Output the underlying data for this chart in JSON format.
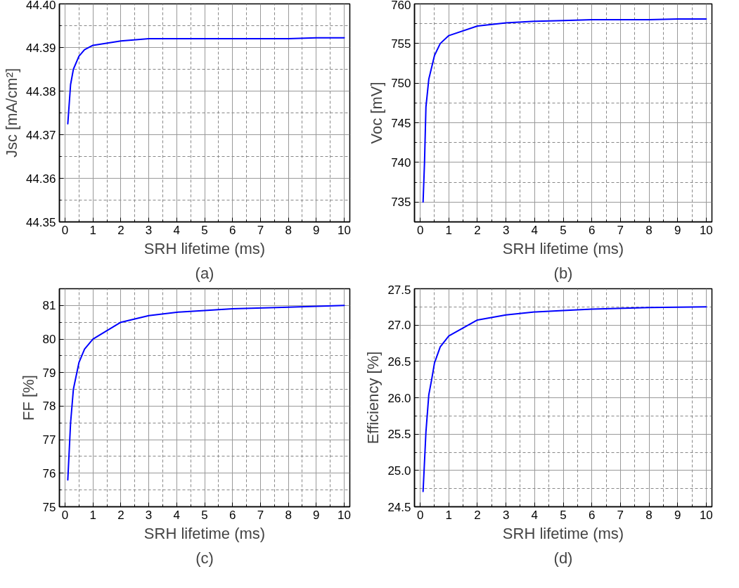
{
  "chart_data": [
    {
      "type": "line",
      "xlabel": "SRH lifetime (ms)",
      "ylabel": "Jsc [mA/cm²]",
      "annotations": [
        "(a)"
      ],
      "grid": true,
      "x": [
        0.1,
        0.2,
        0.3,
        0.5,
        0.7,
        1,
        2,
        3,
        4,
        5,
        6,
        7,
        8,
        9,
        10
      ],
      "series": [
        {
          "color": "#0000ff",
          "values": [
            44.3725,
            44.3815,
            44.385,
            44.388,
            44.3895,
            44.3905,
            44.3915,
            44.392,
            44.392,
            44.392,
            44.392,
            44.392,
            44.392,
            44.3922,
            44.3922
          ]
        }
      ],
      "xlim": [
        -0.2,
        10.2
      ],
      "ylim": [
        44.35,
        44.4
      ],
      "xticks": [
        0,
        1,
        2,
        3,
        4,
        5,
        6,
        7,
        8,
        9,
        10,
        {
          "value": 0.5,
          "label": null
        },
        {
          "value": 1.5,
          "label": null
        },
        {
          "value": 2.5,
          "label": null
        },
        {
          "value": 3.5,
          "label": null
        },
        {
          "value": 4.5,
          "label": null
        },
        {
          "value": 5.5,
          "label": null
        },
        {
          "value": 6.5,
          "label": null
        },
        {
          "value": 7.5,
          "label": null
        },
        {
          "value": 8.5,
          "label": null
        },
        {
          "value": 9.5,
          "label": null
        }
      ],
      "yticks": [
        44.35,
        44.36,
        44.37,
        44.38,
        44.39,
        {
          "value": 44.4,
          "label": "44.40"
        },
        {
          "value": 44.355,
          "label": null
        },
        {
          "value": 44.365,
          "label": null
        },
        {
          "value": 44.375,
          "label": null
        },
        {
          "value": 44.385,
          "label": null
        },
        {
          "value": 44.395,
          "label": null
        }
      ]
    },
    {
      "type": "line",
      "xlabel": "SRH lifetime (ms)",
      "ylabel": "Voc [mV]",
      "annotations": [
        "(b)"
      ],
      "grid": true,
      "x": [
        0.1,
        0.15,
        0.2,
        0.3,
        0.5,
        0.7,
        1,
        2,
        3,
        4,
        5,
        6,
        7,
        8,
        9,
        10
      ],
      "series": [
        {
          "color": "#0000ff",
          "values": [
            735,
            740,
            747,
            750.5,
            753.5,
            755,
            756,
            757.2,
            757.6,
            757.8,
            757.9,
            758,
            758,
            758,
            758.1,
            758.1
          ]
        }
      ],
      "xlim": [
        -0.2,
        10.2
      ],
      "ylim": [
        732.5,
        760
      ],
      "xticks": [
        0,
        1,
        2,
        3,
        4,
        5,
        6,
        7,
        8,
        9,
        10,
        {
          "value": 0.5,
          "label": null
        },
        {
          "value": 1.5,
          "label": null
        },
        {
          "value": 2.5,
          "label": null
        },
        {
          "value": 3.5,
          "label": null
        },
        {
          "value": 4.5,
          "label": null
        },
        {
          "value": 5.5,
          "label": null
        },
        {
          "value": 6.5,
          "label": null
        },
        {
          "value": 7.5,
          "label": null
        },
        {
          "value": 8.5,
          "label": null
        },
        {
          "value": 9.5,
          "label": null
        }
      ],
      "yticks": [
        735,
        740,
        745,
        750,
        755,
        760,
        {
          "value": 737.5,
          "label": null
        },
        {
          "value": 742.5,
          "label": null
        },
        {
          "value": 747.5,
          "label": null
        },
        {
          "value": 752.5,
          "label": null
        },
        {
          "value": 757.5,
          "label": null
        }
      ]
    },
    {
      "type": "line",
      "xlabel": "SRH lifetime (ms)",
      "ylabel": "FF [%]",
      "annotations": [
        "(c)"
      ],
      "grid": true,
      "x": [
        0.1,
        0.2,
        0.3,
        0.5,
        0.7,
        1,
        2,
        3,
        4,
        5,
        6,
        8,
        10
      ],
      "series": [
        {
          "color": "#0000ff",
          "values": [
            75.8,
            77.5,
            78.5,
            79.3,
            79.7,
            80.0,
            80.5,
            80.7,
            80.8,
            80.85,
            80.9,
            80.95,
            81.0
          ]
        }
      ],
      "xlim": [
        -0.2,
        10.2
      ],
      "ylim": [
        75,
        81.5
      ],
      "xticks": [
        0,
        1,
        2,
        3,
        4,
        5,
        6,
        7,
        8,
        9,
        10,
        {
          "value": 0.5,
          "label": null
        },
        {
          "value": 1.5,
          "label": null
        },
        {
          "value": 2.5,
          "label": null
        },
        {
          "value": 3.5,
          "label": null
        },
        {
          "value": 4.5,
          "label": null
        },
        {
          "value": 5.5,
          "label": null
        },
        {
          "value": 6.5,
          "label": null
        },
        {
          "value": 7.5,
          "label": null
        },
        {
          "value": 8.5,
          "label": null
        },
        {
          "value": 9.5,
          "label": null
        }
      ],
      "yticks": [
        75,
        76,
        77,
        78,
        79,
        80,
        81,
        {
          "value": 75.5,
          "label": null
        },
        {
          "value": 76.5,
          "label": null
        },
        {
          "value": 77.5,
          "label": null
        },
        {
          "value": 78.5,
          "label": null
        },
        {
          "value": 79.5,
          "label": null
        },
        {
          "value": 80.5,
          "label": null
        }
      ]
    },
    {
      "type": "line",
      "xlabel": "SRH lifetime (ms)",
      "ylabel": "Efficiency [%]",
      "annotations": [
        "(d)"
      ],
      "grid": true,
      "x": [
        0.1,
        0.2,
        0.3,
        0.4,
        0.5,
        0.7,
        1,
        2,
        3,
        4,
        5,
        6,
        8,
        10
      ],
      "series": [
        {
          "color": "#0000ff",
          "values": [
            24.71,
            25.53,
            26.04,
            26.25,
            26.48,
            26.7,
            26.85,
            27.07,
            27.14,
            27.18,
            27.2,
            27.22,
            27.24,
            27.25
          ]
        }
      ],
      "xlim": [
        -0.2,
        10.2
      ],
      "ylim": [
        24.5,
        27.5
      ],
      "xticks": [
        0,
        1,
        2,
        3,
        4,
        5,
        6,
        7,
        8,
        9,
        10,
        {
          "value": 0.5,
          "label": null
        },
        {
          "value": 1.5,
          "label": null
        },
        {
          "value": 2.5,
          "label": null
        },
        {
          "value": 3.5,
          "label": null
        },
        {
          "value": 4.5,
          "label": null
        },
        {
          "value": 5.5,
          "label": null
        },
        {
          "value": 6.5,
          "label": null
        },
        {
          "value": 7.5,
          "label": null
        },
        {
          "value": 8.5,
          "label": null
        },
        {
          "value": 9.5,
          "label": null
        }
      ],
      "yticks": [
        24.5,
        {
          "value": 25,
          "label": "25.0"
        },
        25.5,
        {
          "value": 26,
          "label": "26.0"
        },
        26.5,
        {
          "value": 27,
          "label": "27.0"
        },
        27.5,
        {
          "value": 24.75,
          "label": null
        },
        {
          "value": 25.25,
          "label": null
        },
        {
          "value": 25.75,
          "label": null
        },
        {
          "value": 26.25,
          "label": null
        },
        {
          "value": 26.75,
          "label": null
        },
        {
          "value": 27.25,
          "label": null
        }
      ]
    }
  ]
}
